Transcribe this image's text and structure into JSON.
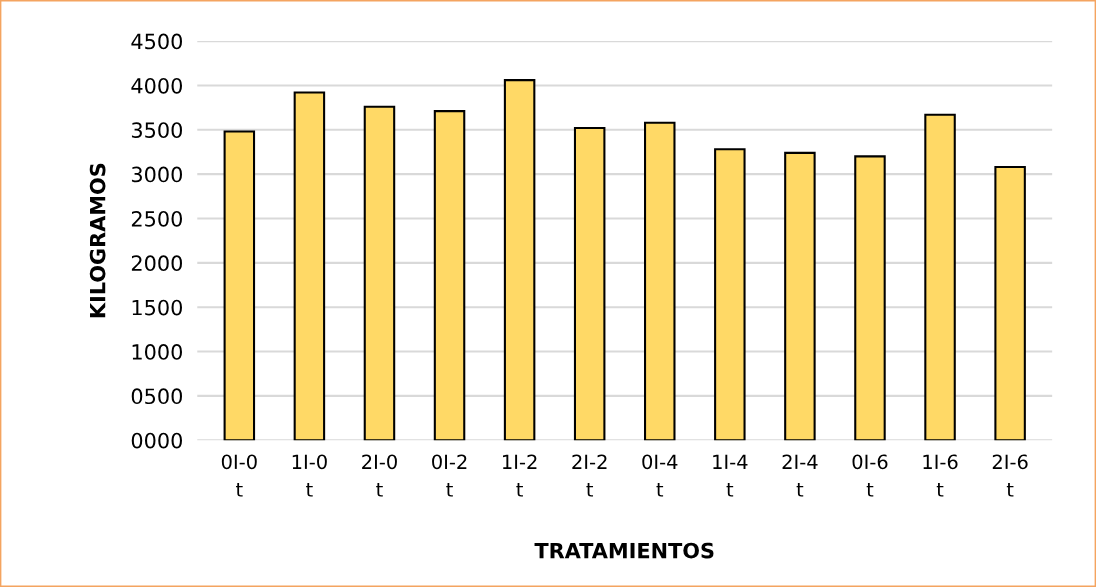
{
  "chart_data": {
    "type": "bar",
    "xlabel": "TRATAMIENTOS",
    "ylabel": "KILOGRAMOS",
    "categories": [
      "0I-0\nt",
      "1I-0\nt",
      "2I-0\nt",
      "0I-2\nt",
      "1I-2\nt",
      "2I-2\nt",
      "0I-4\nt",
      "1I-4\nt",
      "2I-4\nt",
      "0I-6\nt",
      "1I-6\nt",
      "2I-6\nt"
    ],
    "values": [
      3480,
      3920,
      3760,
      3710,
      4060,
      3520,
      3580,
      3280,
      3240,
      3200,
      3670,
      3080
    ],
    "color": "#ffd966",
    "ylim": [
      0,
      4500
    ],
    "yticks": [
      {
        "value": 0,
        "label": "0000"
      },
      {
        "value": 500,
        "label": "0500"
      },
      1000,
      1500,
      2000,
      2500,
      3000,
      3500,
      4000,
      4500
    ],
    "grid": "y"
  }
}
